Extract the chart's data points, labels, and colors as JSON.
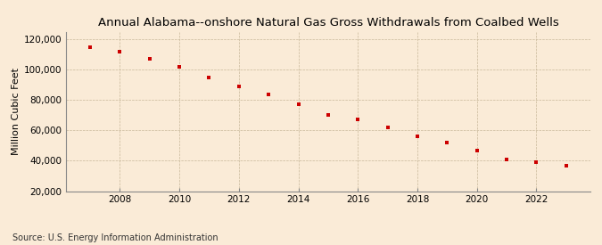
{
  "title": "Annual Alabama--onshore Natural Gas Gross Withdrawals from Coalbed Wells",
  "ylabel": "Million Cubic Feet",
  "source": "Source: U.S. Energy Information Administration",
  "background_color": "#faebd7",
  "marker_color": "#cc0000",
  "years": [
    2007,
    2008,
    2009,
    2010,
    2011,
    2012,
    2013,
    2014,
    2015,
    2016,
    2017,
    2018,
    2019,
    2020,
    2021,
    2022,
    2023
  ],
  "values": [
    115000,
    112000,
    107000,
    102000,
    95000,
    89000,
    84000,
    77000,
    70000,
    67000,
    62000,
    56000,
    52000,
    47000,
    41000,
    39000,
    37000
  ],
  "ylim": [
    20000,
    125000
  ],
  "yticks": [
    20000,
    40000,
    60000,
    80000,
    100000,
    120000
  ],
  "xticks": [
    2008,
    2010,
    2012,
    2014,
    2016,
    2018,
    2020,
    2022
  ],
  "xtick_labels": [
    "2008",
    "2010",
    "2012",
    "2014",
    "2016",
    "2018",
    "2020",
    "2022"
  ],
  "xlim_left": 2006.2,
  "xlim_right": 2023.8,
  "title_fontsize": 9.5,
  "label_fontsize": 8,
  "tick_fontsize": 7.5,
  "source_fontsize": 7
}
